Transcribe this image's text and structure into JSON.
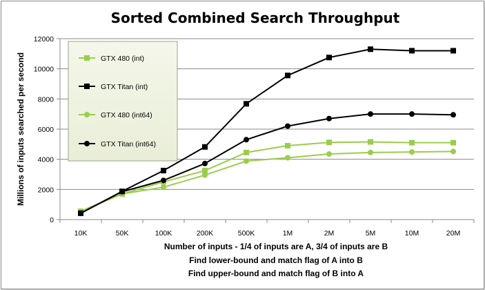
{
  "chart_data": {
    "type": "line",
    "title": "Sorted Combined Search Throughput",
    "ylabel": "Millions of inputs searched per second",
    "xlabel_lines": [
      "Number of inputs - 1/4 of inputs are A, 3/4 of inputs are B",
      "Find lower-bound and match flag of A into B",
      "Find upper-bound and match flag of B into A"
    ],
    "categories": [
      "10K",
      "50K",
      "100K",
      "200K",
      "500K",
      "1M",
      "2M",
      "5M",
      "10M",
      "20M"
    ],
    "ylim": [
      0,
      12000
    ],
    "yticks": [
      0,
      2000,
      4000,
      6000,
      8000,
      10000,
      12000
    ],
    "grid": "horizontal",
    "legend_position": "top-left",
    "series": [
      {
        "name": "GTX 480 (int)",
        "marker": "square",
        "color": "#9acd4a",
        "values": [
          550,
          1700,
          2500,
          3250,
          4450,
          4900,
          5120,
          5150,
          5100,
          5100
        ]
      },
      {
        "name": "GTX Titan (int)",
        "marker": "square",
        "color": "#000000",
        "values": [
          420,
          1870,
          3250,
          4820,
          7680,
          9560,
          10750,
          11300,
          11200,
          11200
        ]
      },
      {
        "name": "GTX 480 (int64)",
        "marker": "circle",
        "color": "#9acd4a",
        "values": [
          550,
          1700,
          2150,
          2950,
          3880,
          4100,
          4350,
          4450,
          4480,
          4520
        ]
      },
      {
        "name": "GTX Titan (int64)",
        "marker": "circle",
        "color": "#000000",
        "values": [
          420,
          1850,
          2600,
          3720,
          5300,
          6200,
          6700,
          7000,
          7000,
          6950
        ]
      }
    ]
  }
}
